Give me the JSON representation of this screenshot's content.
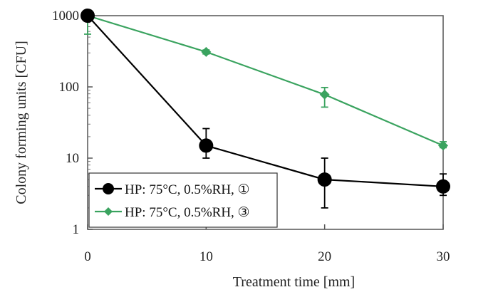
{
  "chart_data": {
    "type": "line",
    "xlabel": "Treatment time [mm]",
    "ylabel": "Colony forming units [CFU]",
    "x_ticks": [
      0,
      10,
      20,
      30
    ],
    "y_ticks": [
      1,
      10,
      100,
      1000
    ],
    "y_tick_labels": [
      "1",
      "10",
      "100",
      "1000"
    ],
    "xlim": [
      0,
      30
    ],
    "ylim": [
      1,
      1000
    ],
    "yscale": "log",
    "grid": false,
    "legend_position": "bottom-left",
    "series": [
      {
        "name": "HP: 75°C, 0.5%RH, ①",
        "color": "#000000",
        "marker": "circle",
        "x": [
          0,
          10,
          20,
          30
        ],
        "y": [
          1000,
          15,
          5,
          4
        ],
        "err_low": [
          1000,
          10,
          2,
          3
        ],
        "err_high": [
          1000,
          26,
          10,
          6
        ]
      },
      {
        "name": "HP: 75°C, 0.5%RH, ③",
        "color": "#3aa35f",
        "marker": "diamond",
        "x": [
          0,
          10,
          20,
          30
        ],
        "y": [
          1000,
          310,
          78,
          15
        ],
        "err_low": [
          550,
          290,
          52,
          14
        ],
        "err_high": [
          1000,
          330,
          98,
          17
        ]
      }
    ]
  }
}
